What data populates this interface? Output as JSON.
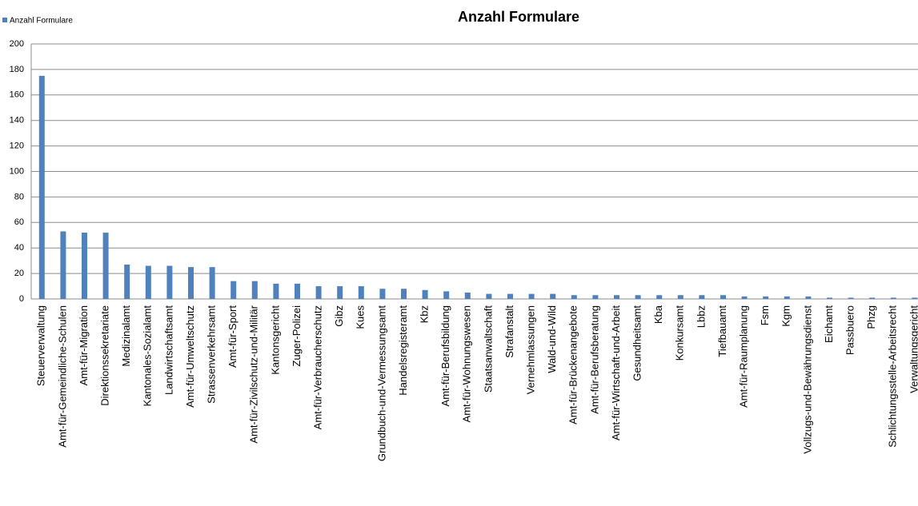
{
  "chart_data": {
    "type": "bar",
    "title": "Anzahl Formulare",
    "categories": [
      "Steuerverwaltung",
      "Amt-für-Gemeindliche-Schulen",
      "Amt-für-Migration",
      "Direktionssekretariate",
      "Medizinalamt",
      "Kantonales-Sozialamt",
      "Landwirtschaftsamt",
      "Amt-für-Umweltschutz",
      "Strassenverkehrsamt",
      "Amt-für-Sport",
      "Amt-für-Zivilschutz-und-Militär",
      "Kantonsgericht",
      "Zuger-Polizei",
      "Amt-für-Verbraucherschutz",
      "Gibz",
      "Kues",
      "Grundbuch-und-Vermessungsamt",
      "Handelsregisteramt",
      "Kbz",
      "Amt-für-Berufsbildung",
      "Amt-für-Wohnungswesen",
      "Staatsanwaltschaft",
      "Strafanstalt",
      "Vernehmlassungen",
      "Wald-und-Wild",
      "Amt-für-Brückenangebote",
      "Amt-für-Berufsberatung",
      "Amt-für-Wirtschaft-und-Arbeit",
      "Gesundheitsamt",
      "Kba",
      "Konkursamt",
      "Lbbz",
      "Tiefbauamt",
      "Amt-für-Raumplanung",
      "Fsm",
      "Kgm",
      "Vollzugs-und-Bewährungsdienst",
      "Eichamt",
      "Passbuero",
      "Phzg",
      "Schlichtungsstelle-Arbeitsrecht",
      "Verwaltungsgericht"
    ],
    "series": [
      {
        "name": "Anzahl Formulare",
        "color": "#4f81bd",
        "values": [
          175,
          53,
          52,
          52,
          27,
          26,
          26,
          25,
          25,
          14,
          14,
          12,
          12,
          10,
          10,
          10,
          8,
          8,
          7,
          6,
          5,
          4,
          4,
          4,
          4,
          3,
          3,
          3,
          3,
          3,
          3,
          3,
          3,
          2,
          2,
          2,
          2,
          1,
          1,
          1,
          1,
          1
        ]
      }
    ],
    "ylim": [
      0,
      200
    ],
    "yticks": [
      0,
      20,
      40,
      60,
      80,
      100,
      120,
      140,
      160,
      180,
      200
    ],
    "grid": true,
    "legend": "top-left"
  }
}
